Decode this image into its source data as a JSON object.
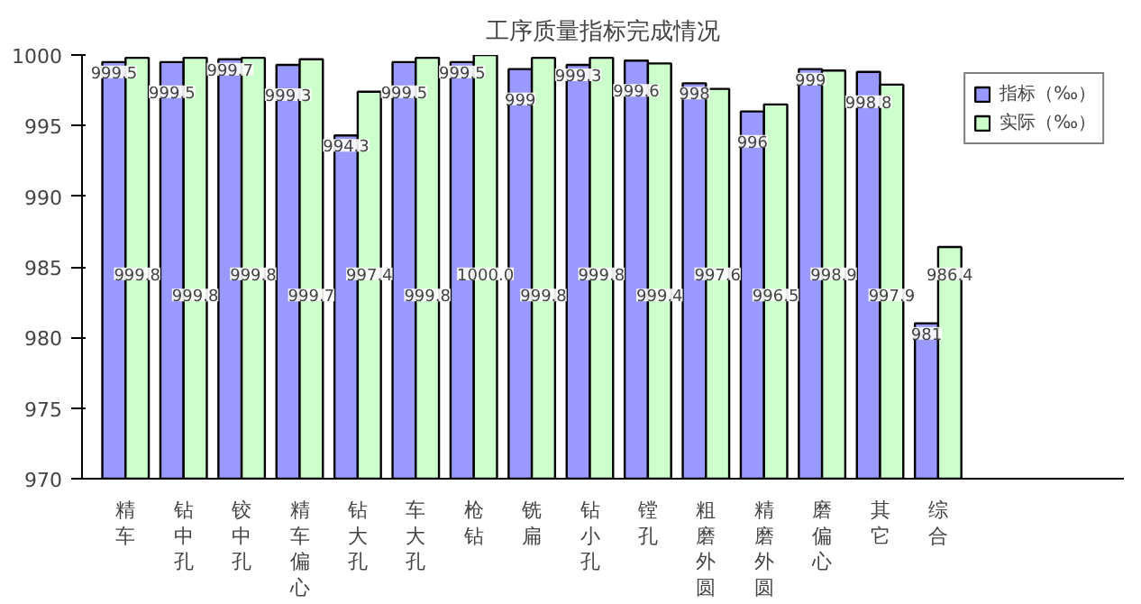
{
  "chart_data": {
    "type": "bar",
    "title": "工序质量指标完成情况",
    "categories": [
      "精车",
      "钻中孔",
      "铰中孔",
      "精车偏心",
      "钻大孔",
      "车大孔",
      "枪钻",
      "铣扁",
      "钻小孔",
      "镗孔",
      "粗磨外圆",
      "精磨外圆",
      "磨偏心",
      "其它",
      "综合"
    ],
    "series": [
      {
        "name": "指标（‰）",
        "color": "#9999ff",
        "values": [
          999.5,
          999.5,
          999.7,
          999.3,
          994.3,
          999.5,
          999.5,
          999,
          999.3,
          999.6,
          998,
          996,
          999,
          998.8,
          981
        ],
        "value_labels": [
          "999.5",
          "999.5",
          "999.7",
          "999.3",
          "994.3",
          "999.5",
          "999.5",
          "999",
          "999.3",
          "999.6",
          "998",
          "996",
          "999",
          "998.8",
          "981"
        ]
      },
      {
        "name": "实际（‰）",
        "color": "#ccffcc",
        "values": [
          999.8,
          999.8,
          999.8,
          999.7,
          997.4,
          999.8,
          1000.0,
          999.8,
          999.8,
          999.4,
          997.6,
          996.5,
          998.9,
          997.9,
          986.4
        ],
        "value_labels": [
          "999.8",
          "999.8",
          "999.8",
          "999.7",
          "997.4",
          "999.8",
          "1000.0",
          "999.8",
          "999.8",
          "999.4",
          "997.6",
          "996.5",
          "998.9",
          "997.9",
          "986.4"
        ]
      }
    ],
    "ylim": [
      970,
      1000
    ],
    "yticks": [
      970,
      975,
      980,
      985,
      990,
      995,
      1000
    ],
    "grid": false,
    "legend": "top right"
  }
}
